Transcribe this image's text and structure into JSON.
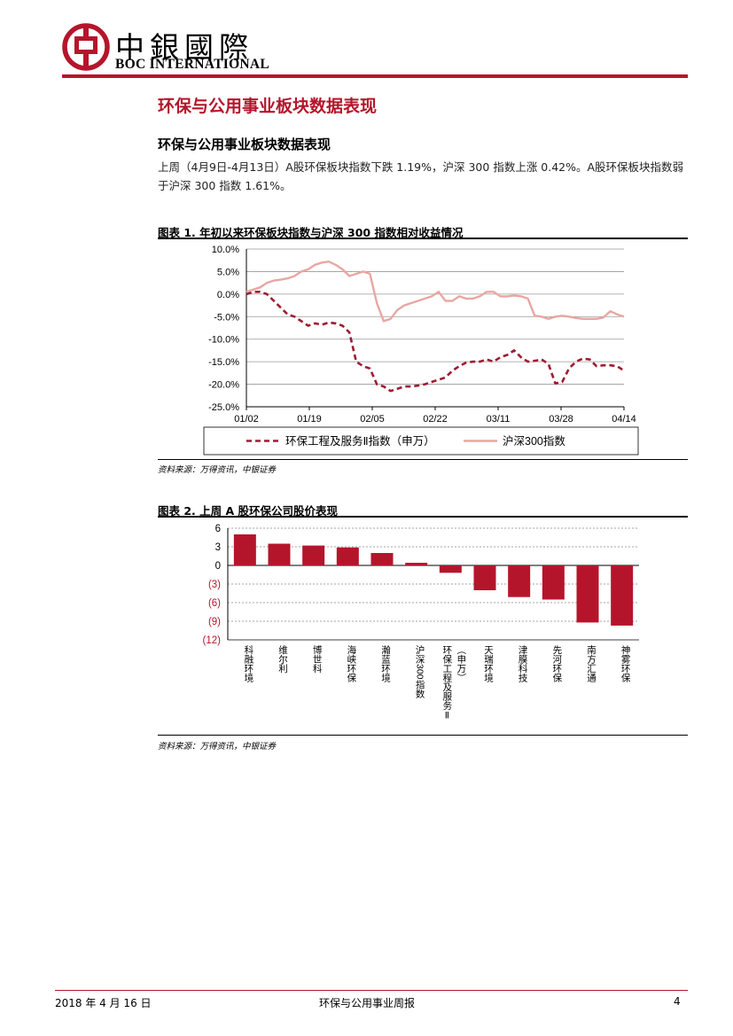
{
  "header": {
    "logo_cn": "中銀國際",
    "logo_en": "BOC INTERNATIONAL",
    "brand_color": "#b5152b"
  },
  "section_title": "环保与公用事业板块数据表现",
  "subsection_title": "环保与公用事业板块数据表现",
  "paragraph": "上周（4月9日-4月13日）A股环保板块指数下跌 1.19%，沪深 300 指数上涨 0.42%。A股环保板块指数弱于沪深 300 指数 1.61%。",
  "figure1": {
    "title": "图表 1. 年初以来环保板块指数与沪深 300 指数相对收益情况",
    "source": "资料来源：万得资讯，中银证券",
    "chart_data": {
      "type": "line",
      "title": "",
      "xlabel": "",
      "ylabel": "",
      "ylim": [
        -25,
        10
      ],
      "y_ticks": [
        "10.0%",
        "5.0%",
        "0.0%",
        "-5.0%",
        "-10.0%",
        "-15.0%",
        "-20.0%",
        "-25.0%"
      ],
      "x_ticks": [
        "01/02",
        "01/19",
        "02/05",
        "02/22",
        "03/11",
        "03/28",
        "04/14"
      ],
      "legend_position": "bottom",
      "series": [
        {
          "name": "环保工程及服务Ⅱ指数（申万）",
          "style": "dashed",
          "color": "#9e1b32",
          "points": [
            [
              0,
              0
            ],
            [
              2,
              0.5
            ],
            [
              4,
              0.5
            ],
            [
              6,
              0
            ],
            [
              8,
              -1.5
            ],
            [
              10,
              -3
            ],
            [
              12,
              -4.5
            ],
            [
              14,
              -5
            ],
            [
              16,
              -6
            ],
            [
              18,
              -7
            ],
            [
              20,
              -6.5
            ],
            [
              22,
              -6.8
            ],
            [
              24,
              -6.3
            ],
            [
              26,
              -6.5
            ],
            [
              28,
              -7
            ],
            [
              30,
              -8.5
            ],
            [
              32,
              -15
            ],
            [
              34,
              -16
            ],
            [
              36,
              -16.5
            ],
            [
              38,
              -20
            ],
            [
              40,
              -20.5
            ],
            [
              42,
              -21.5
            ],
            [
              44,
              -21
            ],
            [
              46,
              -20.5
            ],
            [
              48,
              -20.5
            ],
            [
              50,
              -20.3
            ],
            [
              52,
              -20
            ],
            [
              54,
              -19.5
            ],
            [
              56,
              -19
            ],
            [
              58,
              -18.5
            ],
            [
              60,
              -17
            ],
            [
              62,
              -16
            ],
            [
              64,
              -15.2
            ],
            [
              66,
              -15
            ],
            [
              68,
              -15
            ],
            [
              70,
              -14.5
            ],
            [
              72,
              -15
            ],
            [
              74,
              -14
            ],
            [
              76,
              -13.5
            ],
            [
              78,
              -12.5
            ],
            [
              80,
              -14
            ],
            [
              82,
              -15
            ],
            [
              84,
              -14.8
            ],
            [
              86,
              -14.5
            ],
            [
              88,
              -15.5
            ],
            [
              90,
              -19.8
            ],
            [
              92,
              -19.5
            ],
            [
              94,
              -16.5
            ],
            [
              96,
              -15
            ],
            [
              98,
              -14.3
            ],
            [
              100,
              -14.5
            ],
            [
              102,
              -16
            ],
            [
              104,
              -15.8
            ],
            [
              106,
              -15.8
            ],
            [
              108,
              -16
            ],
            [
              110,
              -17
            ]
          ]
        },
        {
          "name": "沪深300指数",
          "style": "solid",
          "color": "#e8a7a2",
          "points": [
            [
              0,
              0.5
            ],
            [
              2,
              1
            ],
            [
              4,
              1.5
            ],
            [
              6,
              2.5
            ],
            [
              8,
              3
            ],
            [
              10,
              3.2
            ],
            [
              12,
              3.5
            ],
            [
              14,
              4
            ],
            [
              16,
              5
            ],
            [
              18,
              5.5
            ],
            [
              20,
              6.5
            ],
            [
              22,
              7
            ],
            [
              24,
              7.2
            ],
            [
              26,
              6.5
            ],
            [
              28,
              5.5
            ],
            [
              30,
              4
            ],
            [
              32,
              4.5
            ],
            [
              34,
              5
            ],
            [
              36,
              4.5
            ],
            [
              38,
              -2
            ],
            [
              40,
              -6
            ],
            [
              42,
              -5.5
            ],
            [
              44,
              -3.5
            ],
            [
              46,
              -2.5
            ],
            [
              48,
              -2
            ],
            [
              50,
              -1.5
            ],
            [
              52,
              -1
            ],
            [
              54,
              -0.5
            ],
            [
              56,
              0.5
            ],
            [
              58,
              -1.5
            ],
            [
              60,
              -1.5
            ],
            [
              62,
              -0.5
            ],
            [
              64,
              -1
            ],
            [
              66,
              -1
            ],
            [
              68,
              -0.5
            ],
            [
              70,
              0.5
            ],
            [
              72,
              0.5
            ],
            [
              74,
              -0.5
            ],
            [
              76,
              -0.5
            ],
            [
              78,
              -0.3
            ],
            [
              80,
              -0.5
            ],
            [
              82,
              -1
            ],
            [
              84,
              -4.8
            ],
            [
              86,
              -5
            ],
            [
              88,
              -5.5
            ],
            [
              90,
              -5
            ],
            [
              92,
              -4.8
            ],
            [
              94,
              -5
            ],
            [
              96,
              -5.3
            ],
            [
              98,
              -5.5
            ],
            [
              100,
              -5.5
            ],
            [
              102,
              -5.5
            ],
            [
              104,
              -5.2
            ],
            [
              106,
              -3.8
            ],
            [
              108,
              -4.5
            ],
            [
              110,
              -5
            ]
          ]
        }
      ]
    }
  },
  "figure2": {
    "title": "图表 2. 上周 A 股环保公司股价表现",
    "source": "资料来源：万得资讯，中银证券",
    "chart_data": {
      "type": "bar",
      "title": "",
      "xlabel": "",
      "ylabel": "",
      "ylim": [
        -12,
        6
      ],
      "y_ticks": [
        6,
        3,
        0,
        -3,
        -6,
        -9,
        -12
      ],
      "y_tick_labels": [
        "6",
        "3",
        "0",
        "(3)",
        "(6)",
        "(9)",
        "(12)"
      ],
      "bar_color": "#b5152b",
      "categories": [
        "科融环境",
        "维尔利",
        "博世科",
        "海峡环保",
        "瀚蓝环境",
        "沪深300指数",
        "环保工程及服务Ⅱ（申万）",
        "天瑞环境",
        "津膜科技",
        "先河环保",
        "南方汇通",
        "神雾环保"
      ],
      "values": [
        5.0,
        3.5,
        3.2,
        2.9,
        2.0,
        0.42,
        -1.19,
        -4.0,
        -5.1,
        -5.5,
        -9.2,
        -9.7
      ]
    }
  },
  "footer": {
    "date": "2018 年 4 月 16 日",
    "title": "环保与公用事业周报",
    "page": "4"
  }
}
